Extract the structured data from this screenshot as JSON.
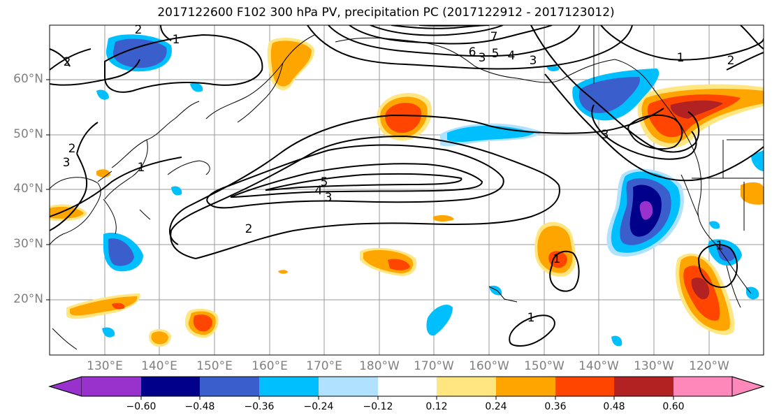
{
  "title": "2017122600 F102 300 hPa PV, precipitation PC (2017122912 - 2017123012)",
  "map": {
    "lat_labels": [
      "60°N",
      "50°N",
      "40°N",
      "30°N",
      "20°N"
    ],
    "lon_labels": [
      "130°E",
      "140°E",
      "150°E",
      "160°E",
      "170°E",
      "180°W",
      "170°W",
      "160°W",
      "150°W",
      "140°W",
      "130°W",
      "120°W"
    ],
    "contour_labels": [
      "1",
      "2",
      "2",
      "2",
      "3",
      "3",
      "3",
      "3",
      "4",
      "4",
      "5",
      "5",
      "6",
      "7",
      "1",
      "1",
      "2",
      "1",
      "1",
      "1",
      "2",
      "3"
    ]
  },
  "colorbar": {
    "tick_labels": [
      "−0.60",
      "−0.48",
      "−0.36",
      "−0.24",
      "−0.12",
      "0.12",
      "0.24",
      "0.36",
      "0.48",
      "0.60"
    ],
    "colors": [
      "#9932CC",
      "#00008B",
      "#3A5FCD",
      "#00BFFF",
      "#B0E2FF",
      "#FFFFFF",
      "#FFE680",
      "#FFA500",
      "#FF4500",
      "#B22222",
      "#FF88BB"
    ]
  }
}
